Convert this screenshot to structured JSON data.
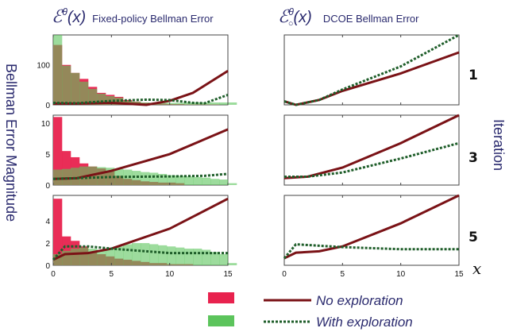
{
  "titles": {
    "left": {
      "symbol": "ℰ",
      "sup": "θ",
      "arg": "(x)",
      "text": "Fixed-policy Bellman Error"
    },
    "right": {
      "symbol": "ℰ",
      "sup": "θ",
      "sub": "○",
      "arg": "(x)",
      "text": "DCOE Bellman Error"
    },
    "ylabel": "Bellman Error Magnitude",
    "row_axis_label": "Iteration",
    "xlabel": "x"
  },
  "rows": [
    "1",
    "3",
    "5"
  ],
  "legend": {
    "hist_no_exploration_color": "#e8224e",
    "hist_with_exploration_color": "#5cc45c",
    "no_exploration": "No exploration",
    "with_exploration": "With exploration",
    "line_no_exploration_color": "#7a1216",
    "line_with_exploration_color": "#1f5e2a"
  },
  "chart_data": [
    {
      "type": "bar+line",
      "panel": "fixed-policy",
      "iteration": "1",
      "xlim": [
        0,
        15
      ],
      "ylim": [
        0,
        175
      ],
      "yticks": [
        0,
        100
      ],
      "bin_width": 0.75,
      "hist_no_exploration": [
        150,
        100,
        80,
        65,
        45,
        30,
        25,
        20,
        12,
        8,
        5,
        4,
        3,
        2,
        2,
        1,
        1,
        1,
        1,
        0,
        0
      ],
      "hist_with_exploration": [
        175,
        98,
        80,
        58,
        40,
        28,
        22,
        18,
        10,
        8,
        6,
        5,
        5,
        5,
        5,
        6,
        6,
        6,
        6,
        6,
        6
      ],
      "line_no_exploration": {
        "x": [
          0,
          2,
          5,
          8,
          10,
          12,
          15
        ],
        "y": [
          3,
          3,
          5,
          0,
          10,
          30,
          85
        ]
      },
      "line_with_exploration": {
        "x": [
          0,
          2,
          5,
          8,
          10,
          12,
          13,
          15
        ],
        "y": [
          5,
          4,
          10,
          13,
          12,
          5,
          4,
          25
        ]
      }
    },
    {
      "type": "bar+line",
      "panel": "fixed-policy",
      "iteration": "3",
      "xlim": [
        0,
        15
      ],
      "ylim": [
        0,
        11.3
      ],
      "yticks": [
        0,
        5,
        10
      ],
      "bin_width": 0.75,
      "hist_no_exploration": [
        11,
        5.5,
        4.5,
        3.5,
        3,
        2.7,
        2.2,
        1.5,
        1,
        0.8,
        0.6,
        0.5,
        0.4,
        0.4,
        0.3,
        0,
        0,
        0,
        0,
        0,
        0
      ],
      "hist_with_exploration": [
        2.5,
        2.6,
        2.8,
        3,
        3,
        2.9,
        2.8,
        2.6,
        2.5,
        2.3,
        2.1,
        2.0,
        1.8,
        1.6,
        1.5,
        1.4,
        1.3,
        1.2,
        1.0,
        0.9,
        0.3
      ],
      "line_no_exploration": {
        "x": [
          0,
          2,
          5,
          10,
          15
        ],
        "y": [
          1,
          1.1,
          2.3,
          5,
          9
        ]
      },
      "line_with_exploration": {
        "x": [
          0,
          5,
          10,
          13,
          15
        ],
        "y": [
          1,
          1.3,
          1.4,
          1.5,
          1.8
        ]
      }
    },
    {
      "type": "bar+line",
      "panel": "fixed-policy",
      "iteration": "5",
      "xlim": [
        0,
        15
      ],
      "ylim": [
        0,
        6.3
      ],
      "yticks": [
        0,
        2,
        4
      ],
      "xticks": [
        0,
        5,
        10,
        15
      ],
      "bin_width": 0.75,
      "hist_no_exploration": [
        6,
        2.6,
        2.2,
        1.7,
        1.2,
        1,
        0.8,
        0.6,
        0.5,
        0.4,
        0.3,
        0.2,
        0.2,
        0.1,
        0.1,
        0.1,
        0,
        0,
        0,
        0,
        0
      ],
      "hist_with_exploration": [
        1,
        1.3,
        1.5,
        1.6,
        1.5,
        1.4,
        1.5,
        1.7,
        1.9,
        2,
        2,
        1.9,
        1.8,
        1.7,
        1.6,
        1.5,
        1.5,
        1.4,
        1.2,
        1.0,
        0.2
      ],
      "line_no_exploration": {
        "x": [
          0,
          1,
          3,
          5,
          10,
          15
        ],
        "y": [
          0.5,
          1,
          1.1,
          1.5,
          3.3,
          6
        ]
      },
      "line_with_exploration": {
        "x": [
          0,
          1,
          3,
          5,
          10,
          15
        ],
        "y": [
          0.5,
          1.7,
          1.7,
          1.5,
          1.1,
          1.1
        ]
      }
    },
    {
      "type": "line",
      "panel": "DCOE",
      "iteration": "1",
      "xlim": [
        0,
        15
      ],
      "ylim": [
        0,
        1
      ],
      "line_no_exploration": {
        "x": [
          0,
          1,
          3,
          5,
          10,
          15
        ],
        "y": [
          0.05,
          0,
          0.07,
          0.2,
          0.45,
          0.75
        ]
      },
      "line_with_exploration": {
        "x": [
          0,
          1,
          3,
          5,
          10,
          15
        ],
        "y": [
          0.05,
          0,
          0.07,
          0.22,
          0.55,
          1.0
        ]
      }
    },
    {
      "type": "line",
      "panel": "DCOE",
      "iteration": "3",
      "xlim": [
        0,
        15
      ],
      "ylim": [
        0,
        1
      ],
      "line_no_exploration": {
        "x": [
          0,
          2,
          5,
          10,
          15
        ],
        "y": [
          0.1,
          0.12,
          0.25,
          0.6,
          1.0
        ]
      },
      "line_with_exploration": {
        "x": [
          0,
          2,
          5,
          10,
          15
        ],
        "y": [
          0.12,
          0.12,
          0.18,
          0.38,
          0.6
        ]
      }
    },
    {
      "type": "line",
      "panel": "DCOE",
      "iteration": "5",
      "xlim": [
        0,
        15
      ],
      "ylim": [
        0,
        1
      ],
      "xticks": [
        0,
        5,
        10,
        15
      ],
      "line_no_exploration": {
        "x": [
          0,
          1,
          3,
          5,
          10,
          15
        ],
        "y": [
          0.1,
          0.18,
          0.2,
          0.27,
          0.6,
          1.0
        ]
      },
      "line_with_exploration": {
        "x": [
          0,
          1,
          3,
          5,
          10,
          15
        ],
        "y": [
          0.1,
          0.3,
          0.28,
          0.26,
          0.23,
          0.23
        ]
      }
    }
  ]
}
